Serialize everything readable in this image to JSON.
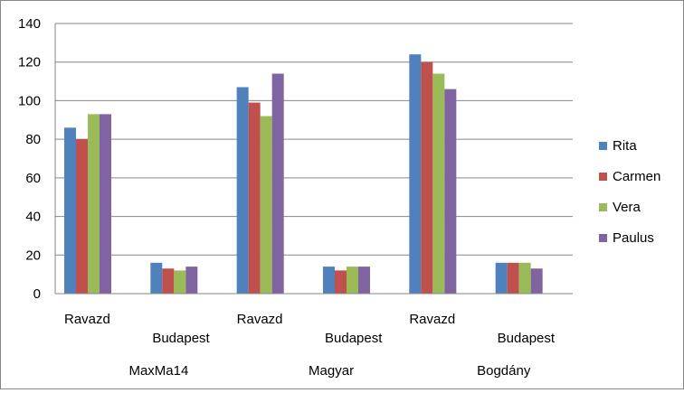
{
  "chart_data": {
    "type": "bar",
    "groups": [
      {
        "name": "MaxMa14",
        "categories": [
          "Ravazd",
          "Budapest"
        ]
      },
      {
        "name": "Magyar",
        "categories": [
          "Ravazd",
          "Budapest"
        ]
      },
      {
        "name": "Bogdány",
        "categories": [
          "Ravazd",
          "Budapest"
        ]
      }
    ],
    "series": [
      {
        "name": "Rita",
        "color": "#4F81BD",
        "values": [
          86,
          16,
          107,
          14,
          124,
          16
        ]
      },
      {
        "name": "Carmen",
        "color": "#C0504D",
        "values": [
          80,
          13,
          99,
          12,
          120,
          16
        ]
      },
      {
        "name": "Vera",
        "color": "#9BBB59",
        "values": [
          93,
          12,
          92,
          14,
          114,
          16
        ]
      },
      {
        "name": "Paulus",
        "color": "#8064A2",
        "values": [
          93,
          14,
          114,
          14,
          106,
          13
        ]
      }
    ],
    "ylim": [
      0,
      140
    ],
    "yticks": [
      "0",
      "20",
      "40",
      "60",
      "80",
      "100",
      "120",
      "140"
    ],
    "grid": true,
    "legend": "right",
    "title": "",
    "xlabel": "",
    "ylabel": ""
  }
}
